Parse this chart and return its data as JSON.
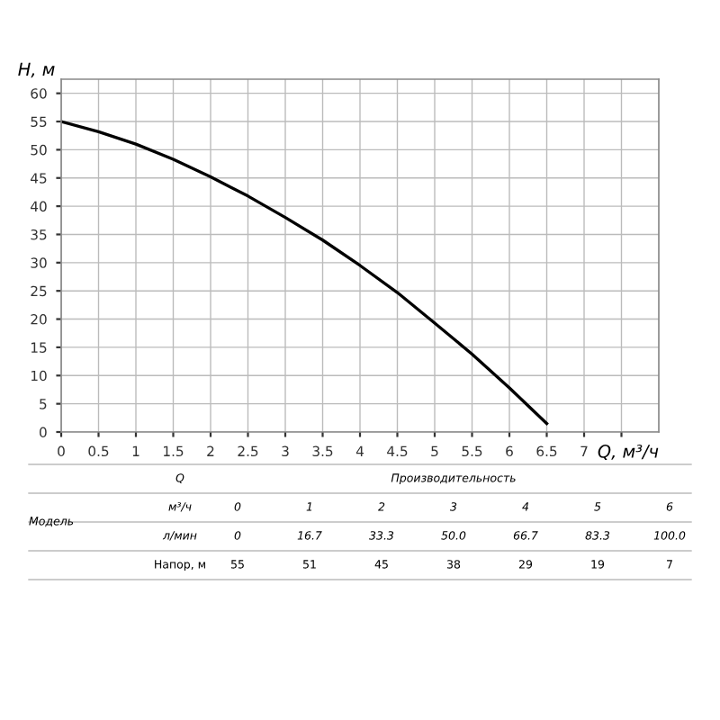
{
  "chart_data": {
    "type": "line",
    "xlabel": "Q, м³/ч",
    "ylabel": "H, м",
    "x": [
      0,
      0.5,
      1,
      1.5,
      2,
      2.5,
      3,
      3.5,
      4,
      4.5,
      5,
      5.5,
      6,
      6.5
    ],
    "series": [
      {
        "color": "#000000",
        "values": [
          55,
          53.2,
          51,
          48.3,
          45.2,
          41.8,
          38,
          34,
          29.5,
          24.7,
          19.3,
          13.8,
          7.8,
          1.5
        ]
      }
    ],
    "xlim": [
      0,
      8
    ],
    "ylim": [
      0,
      62.5
    ],
    "xticks": [
      0,
      0.5,
      1,
      1.5,
      2,
      2.5,
      3,
      3.5,
      4,
      4.5,
      5,
      5.5,
      6,
      6.5,
      7,
      {
        "value": 7.5,
        "label": null
      }
    ],
    "yticks": [
      0,
      5,
      10,
      15,
      20,
      25,
      30,
      35,
      40,
      45,
      50,
      55,
      60
    ],
    "grid": true,
    "marker": "none",
    "line_style": "solid",
    "legend": false,
    "annotations": [
      "Модель",
      "Q",
      "Производительность",
      "м³/ч",
      "0",
      "1",
      "2",
      "3",
      "4",
      "5",
      "6",
      "л/мин",
      "0",
      "16.7",
      "33.3",
      "50.0",
      "66.7",
      "83.3",
      "100.0",
      "Напор, м",
      "55",
      "51",
      "45",
      "38",
      "29",
      "19",
      "7"
    ]
  }
}
